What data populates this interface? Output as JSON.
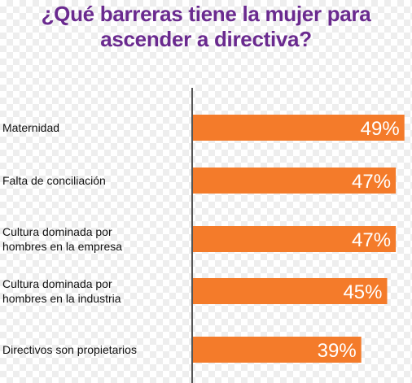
{
  "colors": {
    "title": "#6a2a8f",
    "bar": "#f47b2a",
    "axis": "#555555"
  },
  "header": {
    "title_line1": "¿Qué barreras tiene la mujer para",
    "title_line2": "ascender a directiva?"
  },
  "chart_data": {
    "type": "bar",
    "orientation": "horizontal",
    "title": "¿Qué barreras tiene la mujer para ascender a directiva?",
    "categories": [
      [
        "Maternidad"
      ],
      [
        "Falta de conciliación"
      ],
      [
        "Cultura dominada por",
        "hombres en la empresa"
      ],
      [
        "Cultura dominada por",
        "hombres en la industria"
      ],
      [
        "Directivos son propietarios"
      ]
    ],
    "values": [
      49,
      47,
      47,
      45,
      39
    ],
    "value_labels": [
      "49%",
      "47%",
      "47%",
      "45%",
      "39%"
    ],
    "xlim": [
      0,
      50
    ],
    "grid": false,
    "legend": "none"
  }
}
